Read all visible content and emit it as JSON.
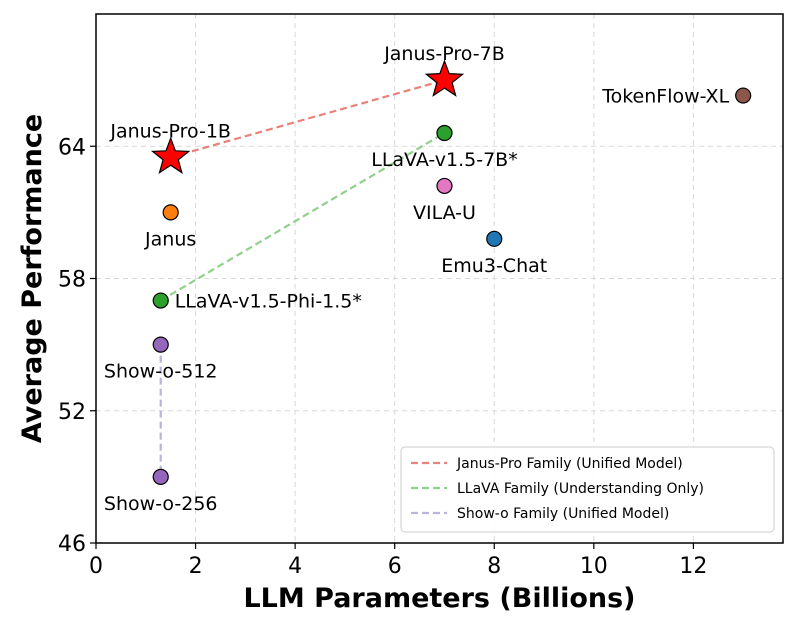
{
  "chart_data": {
    "type": "scatter",
    "xlabel": "LLM Parameters (Billions)",
    "ylabel": "Average Performance",
    "xlim": [
      0,
      13.8
    ],
    "ylim": [
      46,
      70
    ],
    "xticks": [
      "0",
      "2",
      "4",
      "6",
      "8",
      "10",
      "12"
    ],
    "xtick_values": [
      0,
      2,
      4,
      6,
      8,
      10,
      12
    ],
    "yticks": [
      "46",
      "52",
      "58",
      "64"
    ],
    "ytick_values": [
      46,
      52,
      58,
      64
    ],
    "grid": true,
    "legend_position": "bottom-right",
    "points": [
      {
        "label": "Janus-Pro-1B",
        "x": 1.5,
        "y": 63.5,
        "color": "#ff0000",
        "marker": "star",
        "label_pos": "above"
      },
      {
        "label": "Janus-Pro-7B",
        "x": 7.0,
        "y": 67.0,
        "color": "#ff0000",
        "marker": "star",
        "label_pos": "above"
      },
      {
        "label": "TokenFlow-XL",
        "x": 13.0,
        "y": 66.3,
        "color": "#8c564b",
        "marker": "circle",
        "label_pos": "left"
      },
      {
        "label": "LLaVA-v1.5-7B*",
        "x": 7.0,
        "y": 64.6,
        "color": "#2ca02c",
        "marker": "circle",
        "label_pos": "below"
      },
      {
        "label": "VILA-U",
        "x": 7.0,
        "y": 62.2,
        "color": "#e377c2",
        "marker": "circle",
        "label_pos": "below"
      },
      {
        "label": "Janus",
        "x": 1.5,
        "y": 61.0,
        "color": "#ff7f0e",
        "marker": "circle",
        "label_pos": "below"
      },
      {
        "label": "Emu3-Chat",
        "x": 8.0,
        "y": 59.8,
        "color": "#1f77b4",
        "marker": "circle",
        "label_pos": "below"
      },
      {
        "label": "LLaVA-v1.5-Phi-1.5*",
        "x": 1.3,
        "y": 57.0,
        "color": "#2ca02c",
        "marker": "circle",
        "label_pos": "right"
      },
      {
        "label": "Show-o-512",
        "x": 1.3,
        "y": 55.0,
        "color": "#9467bd",
        "marker": "circle",
        "label_pos": "below"
      },
      {
        "label": "Show-o-256",
        "x": 1.3,
        "y": 49.0,
        "color": "#9467bd",
        "marker": "circle",
        "label_pos": "below"
      }
    ],
    "series": [
      {
        "name": "Janus-Pro Family (Unified Model)",
        "color": "#e8827a",
        "x": [
          1.5,
          7.0
        ],
        "y": [
          63.5,
          67.0
        ]
      },
      {
        "name": "LLaVA Family (Understanding Only)",
        "color": "#8fd18a",
        "x": [
          1.3,
          7.0
        ],
        "y": [
          57.0,
          64.6
        ]
      },
      {
        "name": "Show-o Family (Unified Model)",
        "color": "#b8b4dc",
        "x": [
          1.3,
          1.3
        ],
        "y": [
          55.0,
          49.0
        ]
      }
    ]
  }
}
